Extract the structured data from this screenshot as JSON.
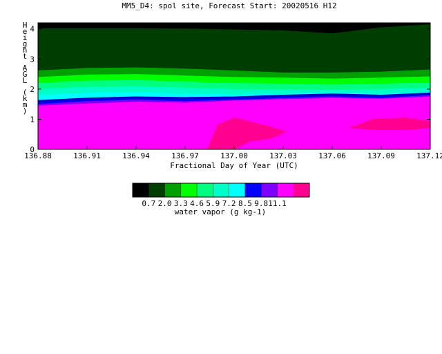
{
  "chart_data": {
    "type": "heatmap",
    "title": "MM5_D4: spol site,  Forecast Start: 20020516 H12",
    "xlabel": "Fractional Day of Year (UTC)",
    "ylabel": "Height AGL (km)",
    "xlim": [
      136.88,
      137.12
    ],
    "ylim": [
      0,
      4.2
    ],
    "x_ticks": [
      "136.88",
      "136.91",
      "136.94",
      "136.97",
      "137.00",
      "137.03",
      "137.06",
      "137.09",
      "137.12"
    ],
    "y_ticks": [
      "0",
      "1",
      "2",
      "3",
      "4"
    ],
    "colorbar": {
      "label": "water vapor (g kg-1)",
      "levels": [
        "0.7",
        "2.0",
        "3.3",
        "4.6",
        "5.9",
        "7.2",
        "8.5",
        "9.8",
        "11.1"
      ],
      "colors": [
        "#000000",
        "#003d00",
        "#00a000",
        "#00ff00",
        "#00ff80",
        "#00ffc8",
        "#00ffff",
        "#0000ff",
        "#8000ff",
        "#ff00ff",
        "#ff0090"
      ]
    },
    "level_color_indices": [
      1,
      2,
      3,
      4,
      5,
      6,
      7,
      8,
      9
    ],
    "time_points": [
      136.88,
      136.91,
      136.94,
      136.97,
      137.0,
      137.03,
      137.06,
      137.09,
      137.12
    ],
    "contour_heights_km": [
      [
        4.02,
        4.02,
        4.02,
        4.01,
        3.98,
        3.95,
        3.85,
        4.05,
        4.15
      ],
      [
        2.62,
        2.7,
        2.72,
        2.68,
        2.62,
        2.55,
        2.55,
        2.58,
        2.65
      ],
      [
        2.4,
        2.48,
        2.5,
        2.45,
        2.4,
        2.38,
        2.35,
        2.38,
        2.42
      ],
      [
        2.2,
        2.28,
        2.3,
        2.25,
        2.2,
        2.18,
        2.15,
        2.18,
        2.22
      ],
      [
        2.0,
        2.08,
        2.1,
        2.05,
        2.0,
        2.0,
        1.98,
        2.0,
        2.05
      ],
      [
        1.8,
        1.88,
        1.9,
        1.85,
        1.82,
        1.85,
        1.88,
        1.85,
        1.9
      ],
      [
        1.6,
        1.68,
        1.72,
        1.7,
        1.72,
        1.78,
        1.82,
        1.78,
        1.85
      ],
      [
        1.5,
        1.6,
        1.65,
        1.6,
        1.65,
        1.7,
        1.75,
        1.7,
        1.8
      ],
      [
        1.45,
        1.52,
        1.58,
        1.55,
        1.62,
        1.67,
        1.7,
        1.68,
        1.75
      ]
    ],
    "grid": false,
    "legend_placement": "bottom"
  }
}
